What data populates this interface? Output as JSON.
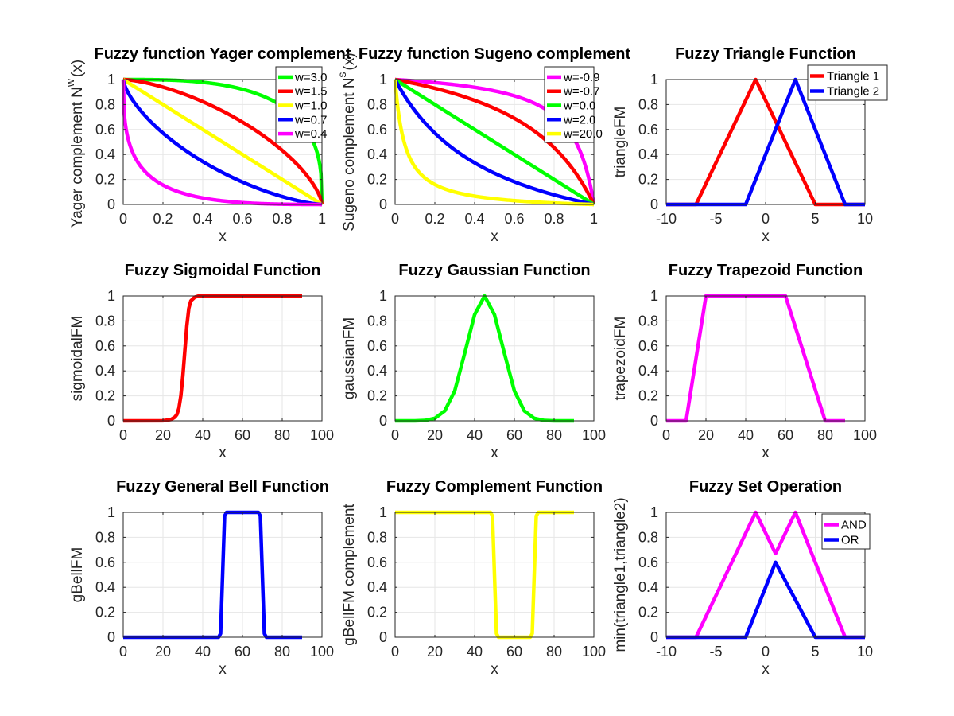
{
  "chart_data": [
    {
      "id": "yager",
      "type": "line",
      "title": "Fuzzy function Yager complement",
      "xlabel": "x",
      "ylabel": "Yager complement N",
      "ylabel_sub": "w",
      "ylabel_tail": "(x)",
      "xlim": [
        0,
        1
      ],
      "ylim": [
        0,
        1
      ],
      "xticks": [
        0,
        0.2,
        0.4,
        0.6,
        0.8,
        1
      ],
      "xtick_labels": [
        "0",
        "0.2",
        "0.4",
        "0.6",
        "0.8",
        "1"
      ],
      "yticks": [
        0,
        0.2,
        0.4,
        0.6,
        0.8,
        1
      ],
      "ytick_labels": [
        "0",
        "0.2",
        "0.4",
        "0.6",
        "0.8",
        "1"
      ],
      "grid": true,
      "legend": "top-right",
      "series": [
        {
          "name": "w=3.0",
          "color": "#00ff00",
          "w": 3.0
        },
        {
          "name": "w=1.5",
          "color": "#ff0000",
          "w": 1.5
        },
        {
          "name": "w=1.0",
          "color": "#ffff00",
          "w": 1.0
        },
        {
          "name": "w=0.7",
          "color": "#0000ff",
          "w": 0.7
        },
        {
          "name": "w=0.4",
          "color": "#ff00ff",
          "w": 0.4
        }
      ]
    },
    {
      "id": "sugeno",
      "type": "line",
      "title": "Fuzzy function Sugeno complement",
      "xlabel": "x",
      "ylabel": "Sugeno complement N",
      "ylabel_sub": "s",
      "ylabel_tail": "(x)",
      "xlim": [
        0,
        1
      ],
      "ylim": [
        0,
        1
      ],
      "xticks": [
        0,
        0.2,
        0.4,
        0.6,
        0.8,
        1
      ],
      "xtick_labels": [
        "0",
        "0.2",
        "0.4",
        "0.6",
        "0.8",
        "1"
      ],
      "yticks": [
        0,
        0.2,
        0.4,
        0.6,
        0.8,
        1
      ],
      "ytick_labels": [
        "0",
        "0.2",
        "0.4",
        "0.6",
        "0.8",
        "1"
      ],
      "grid": true,
      "legend": "top-right",
      "series": [
        {
          "name": "w=-0.9",
          "color": "#ff00ff",
          "w": -0.9
        },
        {
          "name": "w=-0.7",
          "color": "#ff0000",
          "w": -0.7
        },
        {
          "name": "w=0.0",
          "color": "#00ff00",
          "w": 0.0
        },
        {
          "name": "w=2.0",
          "color": "#0000ff",
          "w": 2.0
        },
        {
          "name": "w=20.0",
          "color": "#ffff00",
          "w": 20.0
        }
      ]
    },
    {
      "id": "triangle",
      "type": "line",
      "title": "Fuzzy Triangle Function",
      "xlabel": "x",
      "ylabel": "triangleFM",
      "xlim": [
        -10,
        10
      ],
      "ylim": [
        0,
        1
      ],
      "xticks": [
        -10,
        -5,
        0,
        5,
        10
      ],
      "xtick_labels": [
        "-10",
        "-5",
        "0",
        "5",
        "10"
      ],
      "yticks": [
        0,
        0.2,
        0.4,
        0.6,
        0.8,
        1
      ],
      "ytick_labels": [
        "0",
        "0.2",
        "0.4",
        "0.6",
        "0.8",
        "1"
      ],
      "grid": true,
      "legend": "top-right",
      "series": [
        {
          "name": "Triangle 1",
          "color": "#ff0000",
          "x": [
            -10,
            -7,
            -1,
            5,
            10
          ],
          "y": [
            0,
            0,
            1,
            0,
            0
          ]
        },
        {
          "name": "Triangle 2",
          "color": "#0000ff",
          "x": [
            -10,
            -2,
            3,
            8,
            10
          ],
          "y": [
            0,
            0,
            1,
            0,
            0
          ]
        }
      ]
    },
    {
      "id": "sigmoid",
      "type": "line",
      "title": "Fuzzy Sigmoidal Function",
      "xlabel": "x",
      "ylabel": "sigmoidalFM",
      "xlim": [
        0,
        100
      ],
      "ylim": [
        0,
        1
      ],
      "xticks": [
        0,
        20,
        40,
        60,
        80,
        100
      ],
      "xtick_labels": [
        "0",
        "20",
        "40",
        "60",
        "80",
        "100"
      ],
      "yticks": [
        0,
        0.2,
        0.4,
        0.6,
        0.8,
        1
      ],
      "ytick_labels": [
        "0",
        "0.2",
        "0.4",
        "0.6",
        "0.8",
        "1"
      ],
      "grid": true,
      "series": [
        {
          "color": "#ff0000",
          "x": [
            0,
            20,
            24,
            26,
            27,
            28,
            29,
            30,
            31,
            32,
            33,
            34,
            36,
            38,
            40,
            90
          ],
          "y": [
            0,
            0.001,
            0.01,
            0.03,
            0.05,
            0.1,
            0.2,
            0.36,
            0.56,
            0.76,
            0.9,
            0.96,
            0.99,
            1,
            1,
            1
          ]
        }
      ]
    },
    {
      "id": "gaussian",
      "type": "line",
      "title": "Fuzzy Gaussian Function",
      "xlabel": "x",
      "ylabel": "gaussianFM",
      "xlim": [
        0,
        100
      ],
      "ylim": [
        0,
        1
      ],
      "xticks": [
        0,
        20,
        40,
        60,
        80,
        100
      ],
      "xtick_labels": [
        "0",
        "20",
        "40",
        "60",
        "80",
        "100"
      ],
      "yticks": [
        0,
        0.2,
        0.4,
        0.6,
        0.8,
        1
      ],
      "ytick_labels": [
        "0",
        "0.2",
        "0.4",
        "0.6",
        "0.8",
        "1"
      ],
      "grid": true,
      "series": [
        {
          "color": "#00ff00",
          "x": [
            0,
            10,
            15,
            20,
            25,
            30,
            35,
            40,
            45,
            50,
            55,
            60,
            65,
            70,
            75,
            80,
            90
          ],
          "y": [
            0,
            0,
            0.003,
            0.02,
            0.08,
            0.24,
            0.54,
            0.85,
            1,
            0.85,
            0.54,
            0.24,
            0.08,
            0.02,
            0.003,
            0,
            0
          ]
        }
      ]
    },
    {
      "id": "trapezoid",
      "type": "line",
      "title": "Fuzzy Trapezoid Function",
      "xlabel": "x",
      "ylabel": "trapezoidFM",
      "xlim": [
        0,
        100
      ],
      "ylim": [
        0,
        1
      ],
      "xticks": [
        0,
        20,
        40,
        60,
        80,
        100
      ],
      "xtick_labels": [
        "0",
        "20",
        "40",
        "60",
        "80",
        "100"
      ],
      "yticks": [
        0,
        0.2,
        0.4,
        0.6,
        0.8,
        1
      ],
      "ytick_labels": [
        "0",
        "0.2",
        "0.4",
        "0.6",
        "0.8",
        "1"
      ],
      "grid": true,
      "series": [
        {
          "color": "#ff00ff",
          "x": [
            0,
            10,
            20,
            60,
            80,
            90
          ],
          "y": [
            0,
            0,
            1,
            1,
            0,
            0
          ]
        }
      ]
    },
    {
      "id": "gbell",
      "type": "line",
      "title": "Fuzzy General Bell Function",
      "xlabel": "x",
      "ylabel": "gBellFM",
      "xlim": [
        0,
        100
      ],
      "ylim": [
        0,
        1
      ],
      "xticks": [
        0,
        20,
        40,
        60,
        80,
        100
      ],
      "xtick_labels": [
        "0",
        "20",
        "40",
        "60",
        "80",
        "100"
      ],
      "yticks": [
        0,
        0.2,
        0.4,
        0.6,
        0.8,
        1
      ],
      "ytick_labels": [
        "0",
        "0.2",
        "0.4",
        "0.6",
        "0.8",
        "1"
      ],
      "grid": true,
      "series": [
        {
          "color": "#0000ff",
          "x": [
            0,
            48,
            49,
            50,
            51,
            52,
            53,
            68,
            69,
            70,
            71,
            72,
            90
          ],
          "y": [
            0,
            0,
            0.03,
            0.5,
            0.97,
            1,
            1,
            1,
            0.97,
            0.5,
            0.03,
            0,
            0
          ]
        }
      ]
    },
    {
      "id": "complement",
      "type": "line",
      "title": "Fuzzy Complement Function",
      "xlabel": "x",
      "ylabel": "gBellFM complement",
      "xlim": [
        0,
        100
      ],
      "ylim": [
        0,
        1
      ],
      "xticks": [
        0,
        20,
        40,
        60,
        80,
        100
      ],
      "xtick_labels": [
        "0",
        "20",
        "40",
        "60",
        "80",
        "100"
      ],
      "yticks": [
        0,
        0.2,
        0.4,
        0.6,
        0.8,
        1
      ],
      "ytick_labels": [
        "0",
        "0.2",
        "0.4",
        "0.6",
        "0.8",
        "1"
      ],
      "grid": true,
      "series": [
        {
          "color": "#ffff00",
          "x": [
            0,
            48,
            49,
            50,
            51,
            52,
            53,
            68,
            69,
            70,
            71,
            72,
            90
          ],
          "y": [
            1,
            1,
            0.97,
            0.5,
            0.03,
            0,
            0,
            0,
            0.03,
            0.5,
            0.97,
            1,
            1
          ]
        }
      ]
    },
    {
      "id": "setop",
      "type": "line",
      "title": "Fuzzy Set Operation",
      "xlabel": "x",
      "ylabel": "min(triangle1,triangle2)",
      "xlim": [
        -10,
        10
      ],
      "ylim": [
        0,
        1
      ],
      "xticks": [
        -10,
        -5,
        0,
        5,
        10
      ],
      "xtick_labels": [
        "-10",
        "-5",
        "0",
        "5",
        "10"
      ],
      "yticks": [
        0,
        0.2,
        0.4,
        0.6,
        0.8,
        1
      ],
      "ytick_labels": [
        "0",
        "0.2",
        "0.4",
        "0.6",
        "0.8",
        "1"
      ],
      "grid": true,
      "legend": "top-right",
      "series": [
        {
          "name": "AND",
          "color": "#ff00ff",
          "x": [
            -10,
            -7,
            -1,
            1,
            3,
            8,
            10
          ],
          "y": [
            0,
            0,
            1,
            0.67,
            1,
            0,
            0
          ]
        },
        {
          "name": "OR",
          "color": "#0000ff",
          "x": [
            -10,
            -2,
            1,
            5,
            10
          ],
          "y": [
            0,
            0,
            0.6,
            0,
            0
          ]
        }
      ]
    }
  ]
}
